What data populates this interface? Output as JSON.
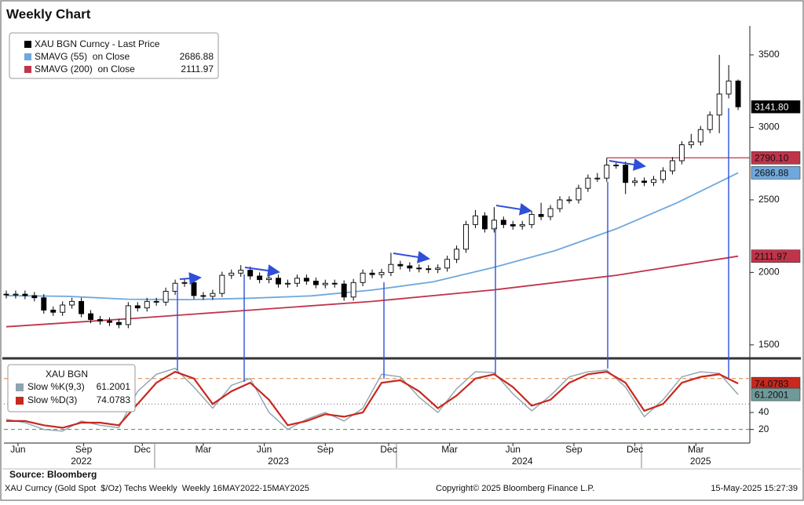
{
  "chart_data": [
    {
      "type": "candlestick",
      "title": "Weekly Chart",
      "xlim": [
        -0.5,
        158.5
      ],
      "ylim": [
        1418,
        3700
      ],
      "yticks": [
        1500,
        2000,
        2500,
        3000,
        3500
      ],
      "series": [
        {
          "name": "XAU BGN Curncy - Last Price",
          "color": "#000000",
          "last_label": "3141.80",
          "x": [
            0,
            2,
            4,
            6,
            8,
            10,
            12,
            14,
            16,
            18,
            20,
            22,
            24,
            26,
            28,
            30,
            32,
            34,
            36,
            38,
            40,
            42,
            44,
            46,
            48,
            50,
            52,
            54,
            56,
            58,
            60,
            62,
            64,
            66,
            68,
            70,
            72,
            74,
            76,
            78,
            80,
            82,
            84,
            86,
            88,
            90,
            92,
            94,
            96,
            98,
            100,
            102,
            104,
            106,
            108,
            110,
            112,
            114,
            116,
            118,
            120,
            122,
            124,
            126,
            128,
            130,
            132,
            134,
            136,
            138,
            140,
            142,
            144,
            146,
            148,
            150,
            152,
            154,
            156
          ],
          "open": [
            1850,
            1845,
            1850,
            1840,
            1825,
            1740,
            1725,
            1775,
            1800,
            1715,
            1675,
            1665,
            1655,
            1640,
            1770,
            1755,
            1800,
            1795,
            1870,
            1925,
            1930,
            1840,
            1835,
            1855,
            1980,
            1995,
            2015,
            1975,
            1950,
            1960,
            1920,
            1925,
            1960,
            1940,
            1915,
            1925,
            1920,
            1830,
            1930,
            1995,
            1985,
            2000,
            2055,
            2045,
            2030,
            2025,
            2020,
            2030,
            2090,
            2160,
            2330,
            2390,
            2300,
            2360,
            2330,
            2320,
            2330,
            2400,
            2385,
            2440,
            2500,
            2500,
            2580,
            2650,
            2650,
            2740,
            2740,
            2620,
            2630,
            2620,
            2640,
            2700,
            2770,
            2880,
            2900,
            2985,
            3085,
            3230,
            3320
          ],
          "high": [
            1875,
            1875,
            1875,
            1865,
            1850,
            1765,
            1800,
            1825,
            1825,
            1740,
            1700,
            1690,
            1680,
            1795,
            1795,
            1825,
            1825,
            1895,
            1950,
            1955,
            1955,
            1865,
            1880,
            2005,
            2020,
            2050,
            2040,
            2000,
            1985,
            1985,
            1950,
            1985,
            1985,
            1965,
            1950,
            1950,
            1945,
            1955,
            2020,
            2020,
            2025,
            2135,
            2080,
            2070,
            2055,
            2050,
            2055,
            2115,
            2185,
            2355,
            2430,
            2415,
            2450,
            2385,
            2355,
            2355,
            2425,
            2480,
            2465,
            2525,
            2525,
            2605,
            2675,
            2685,
            2790,
            2765,
            2765,
            2655,
            2655,
            2665,
            2725,
            2795,
            2905,
            2955,
            3010,
            3110,
            3500,
            3430,
            3330
          ],
          "low": [
            1820,
            1820,
            1815,
            1800,
            1715,
            1700,
            1700,
            1750,
            1690,
            1650,
            1640,
            1630,
            1615,
            1615,
            1730,
            1730,
            1770,
            1770,
            1845,
            1900,
            1815,
            1810,
            1810,
            1830,
            1955,
            1970,
            1950,
            1925,
            1925,
            1895,
            1895,
            1900,
            1915,
            1890,
            1890,
            1895,
            1805,
            1805,
            1905,
            1960,
            1960,
            1975,
            2020,
            2005,
            2000,
            1995,
            1995,
            2005,
            2065,
            2135,
            2305,
            2275,
            2275,
            2305,
            2295,
            2295,
            2305,
            2360,
            2360,
            2415,
            2475,
            2475,
            2555,
            2625,
            2625,
            2715,
            2540,
            2595,
            2595,
            2595,
            2615,
            2675,
            2745,
            2855,
            2875,
            2960,
            2960,
            3200,
            3120
          ],
          "close": [
            1845,
            1850,
            1840,
            1825,
            1740,
            1725,
            1775,
            1800,
            1715,
            1675,
            1665,
            1655,
            1640,
            1770,
            1755,
            1800,
            1795,
            1870,
            1925,
            1930,
            1840,
            1835,
            1855,
            1980,
            1995,
            2015,
            1975,
            1950,
            1960,
            1920,
            1925,
            1960,
            1940,
            1915,
            1925,
            1920,
            1830,
            1930,
            1995,
            1985,
            2000,
            2055,
            2045,
            2030,
            2025,
            2020,
            2030,
            2090,
            2160,
            2330,
            2390,
            2300,
            2360,
            2330,
            2320,
            2330,
            2400,
            2385,
            2440,
            2500,
            2500,
            2580,
            2650,
            2650,
            2740,
            2740,
            2620,
            2630,
            2620,
            2640,
            2700,
            2770,
            2880,
            2900,
            2985,
            3085,
            3230,
            3320,
            3141.8
          ]
        },
        {
          "name": "SMAVG (55)  on Close",
          "color": "#6fa8dc",
          "x": [
            0,
            13,
            26,
            39,
            52,
            65,
            78,
            91,
            104,
            117,
            130,
            143,
            156
          ],
          "values": [
            1840,
            1835,
            1815,
            1812,
            1822,
            1838,
            1878,
            1935,
            2035,
            2150,
            2300,
            2480,
            2686.88
          ]
        },
        {
          "name": "SMAVG (200)  on Close",
          "color": "#c0344a",
          "x": [
            0,
            26,
            52,
            78,
            104,
            130,
            156
          ],
          "values": [
            1625,
            1680,
            1740,
            1800,
            1880,
            1980,
            2111.97
          ]
        }
      ],
      "levels": [
        {
          "value": 2790.1,
          "label": "2790.10",
          "from": 128,
          "color": "#c0344a"
        }
      ]
    },
    {
      "type": "line",
      "legend_title": "XAU BGN",
      "xlim": [
        -0.5,
        158.5
      ],
      "ylim": [
        4,
        101
      ],
      "yticks": [
        20,
        40
      ],
      "reference_lines": [
        {
          "value": 80,
          "color": "#e0823c"
        },
        {
          "value": 50,
          "color": "#666666"
        },
        {
          "value": 20,
          "color": "#3a9a3a"
        }
      ],
      "xticks": [
        {
          "value": 2.5,
          "label": "Jun"
        },
        {
          "value": 16.5,
          "label": "Sep"
        },
        {
          "value": 29,
          "label": "Dec"
        },
        {
          "value": 42,
          "label": "Mar"
        },
        {
          "value": 55,
          "label": "Jun"
        },
        {
          "value": 68,
          "label": "Sep"
        },
        {
          "value": 81.5,
          "label": "Dec"
        },
        {
          "value": 94.5,
          "label": "Mar"
        },
        {
          "value": 108,
          "label": "Jun"
        },
        {
          "value": 121,
          "label": "Sep"
        },
        {
          "value": 134,
          "label": "Dec"
        },
        {
          "value": 147,
          "label": "Mar"
        }
      ],
      "year_labels": [
        {
          "value": 16,
          "label": "2022"
        },
        {
          "value": 58,
          "label": "2023"
        },
        {
          "value": 110,
          "label": "2024"
        },
        {
          "value": 148,
          "label": "2025"
        }
      ],
      "series": [
        {
          "name": "Slow %K(9,3)",
          "color": "#8fa3b0",
          "x": [
            0,
            4,
            8,
            12,
            16,
            20,
            24,
            28,
            32,
            36,
            40,
            44,
            48,
            52,
            56,
            60,
            64,
            68,
            72,
            76,
            80,
            84,
            88,
            92,
            96,
            100,
            104,
            108,
            112,
            116,
            120,
            124,
            128,
            132,
            136,
            140,
            144,
            148,
            152,
            156
          ],
          "values": [
            32,
            28,
            20,
            18,
            30,
            25,
            22,
            65,
            85,
            92,
            70,
            45,
            72,
            80,
            40,
            20,
            32,
            40,
            30,
            45,
            85,
            82,
            58,
            40,
            68,
            88,
            87,
            62,
            42,
            60,
            82,
            88,
            90,
            70,
            35,
            55,
            82,
            88,
            86,
            61.2001
          ]
        },
        {
          "name": "Slow %D(3)",
          "color": "#c8281e",
          "x": [
            0,
            4,
            8,
            12,
            16,
            20,
            24,
            28,
            32,
            36,
            40,
            44,
            48,
            52,
            56,
            60,
            64,
            68,
            72,
            76,
            80,
            84,
            88,
            92,
            96,
            100,
            104,
            108,
            112,
            116,
            120,
            124,
            128,
            132,
            136,
            140,
            144,
            148,
            152,
            156
          ],
          "values": [
            30,
            30,
            25,
            22,
            28,
            28,
            25,
            50,
            75,
            88,
            80,
            50,
            65,
            75,
            55,
            25,
            30,
            38,
            35,
            40,
            75,
            78,
            65,
            45,
            60,
            80,
            85,
            70,
            48,
            55,
            75,
            85,
            88,
            75,
            42,
            50,
            75,
            82,
            85,
            74.0783
          ]
        }
      ]
    }
  ],
  "footer": {
    "source": "Source:  Bloomberg",
    "description": "XAU Curncy (Gold Spot  $/Oz) Techs Weekly  Weekly 16MAY2022-15MAY2025",
    "copyright": "Copyright© 2025 Bloomberg Finance L.P.",
    "timestamp": "15-May-2025 15:27:39"
  }
}
